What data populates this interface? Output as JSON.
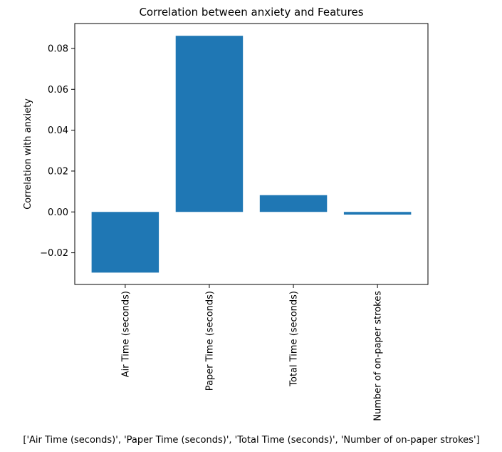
{
  "chart_data": {
    "type": "bar",
    "title": "Correlation between anxiety and Features",
    "xlabel": "['Air Time (seconds)', 'Paper Time (seconds)', 'Total Time (seconds)', 'Number of on-paper strokes']",
    "ylabel": "Correlation with anxiety",
    "categories": [
      "Air Time (seconds)",
      "Paper Time (seconds)",
      "Total Time (seconds)",
      "Number of on-paper strokes"
    ],
    "values": [
      -0.0297,
      0.0862,
      0.0082,
      -0.0013
    ],
    "ylim": [
      -0.0355,
      0.0922
    ],
    "yticks": [
      -0.02,
      0.0,
      0.02,
      0.04,
      0.06,
      0.08
    ],
    "ytick_labels": [
      "−0.02",
      "0.00",
      "0.02",
      "0.04",
      "0.06",
      "0.08"
    ],
    "bar_color": "#1f77b4",
    "grid": false,
    "legend": "none"
  }
}
